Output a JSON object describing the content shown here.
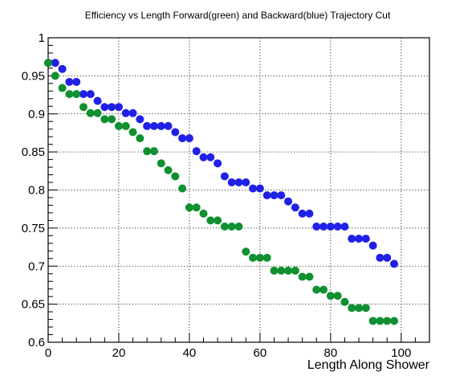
{
  "chart_data": {
    "type": "scatter",
    "title": "Efficiency vs Length Forward(green) and Backward(blue) Trajectory Cut",
    "xlabel": "Length Along Shower",
    "ylabel": "",
    "xlim": [
      0,
      108
    ],
    "ylim": [
      0.6,
      1.0
    ],
    "grid": true,
    "x_ticks": [
      0,
      20,
      40,
      60,
      80,
      100
    ],
    "x_tick_labels": [
      "0",
      "20",
      "40",
      "60",
      "80",
      "100"
    ],
    "y_ticks": [
      0.6,
      0.65,
      0.7,
      0.75,
      0.8,
      0.85,
      0.9,
      0.95,
      1.0
    ],
    "y_tick_labels": [
      "0.6",
      "0.65",
      "0.7",
      "0.75",
      "0.8",
      "0.85",
      "0.9",
      "0.95",
      "1"
    ],
    "series": [
      {
        "color": "#2020e8",
        "x": [
          0,
          2,
          4,
          6,
          8,
          10,
          12,
          14,
          16,
          18,
          20,
          22,
          24,
          26,
          28,
          30,
          32,
          34,
          36,
          38,
          40,
          42,
          44,
          46,
          48,
          50,
          52,
          54,
          56,
          58,
          60,
          62,
          64,
          66,
          68,
          70,
          72,
          74,
          76,
          78,
          80,
          82,
          84,
          86,
          88,
          90,
          92,
          94,
          96,
          98
        ],
        "y": [
          0.967,
          0.967,
          0.959,
          0.942,
          0.942,
          0.926,
          0.926,
          0.917,
          0.909,
          0.909,
          0.909,
          0.901,
          0.901,
          0.893,
          0.884,
          0.884,
          0.884,
          0.884,
          0.876,
          0.868,
          0.868,
          0.851,
          0.843,
          0.843,
          0.835,
          0.818,
          0.81,
          0.81,
          0.81,
          0.802,
          0.802,
          0.793,
          0.793,
          0.793,
          0.785,
          0.777,
          0.769,
          0.769,
          0.752,
          0.752,
          0.752,
          0.752,
          0.752,
          0.736,
          0.736,
          0.736,
          0.727,
          0.711,
          0.711,
          0.703
        ]
      },
      {
        "color": "#109030",
        "x": [
          0,
          2,
          4,
          6,
          8,
          10,
          12,
          14,
          16,
          18,
          20,
          22,
          24,
          26,
          28,
          30,
          32,
          34,
          36,
          38,
          40,
          42,
          44,
          46,
          48,
          50,
          52,
          54,
          56,
          58,
          60,
          62,
          64,
          66,
          68,
          70,
          72,
          74,
          76,
          78,
          80,
          82,
          84,
          86,
          88,
          90,
          92,
          94,
          96,
          98
        ],
        "y": [
          0.967,
          0.95,
          0.934,
          0.926,
          0.926,
          0.909,
          0.901,
          0.901,
          0.893,
          0.893,
          0.884,
          0.884,
          0.876,
          0.868,
          0.851,
          0.851,
          0.835,
          0.826,
          0.818,
          0.802,
          0.777,
          0.777,
          0.769,
          0.76,
          0.76,
          0.752,
          0.752,
          0.752,
          0.719,
          0.711,
          0.711,
          0.711,
          0.694,
          0.694,
          0.694,
          0.694,
          0.686,
          0.686,
          0.669,
          0.669,
          0.661,
          0.661,
          0.653,
          0.645,
          0.645,
          0.645,
          0.628,
          0.628,
          0.628,
          0.628
        ]
      }
    ]
  }
}
